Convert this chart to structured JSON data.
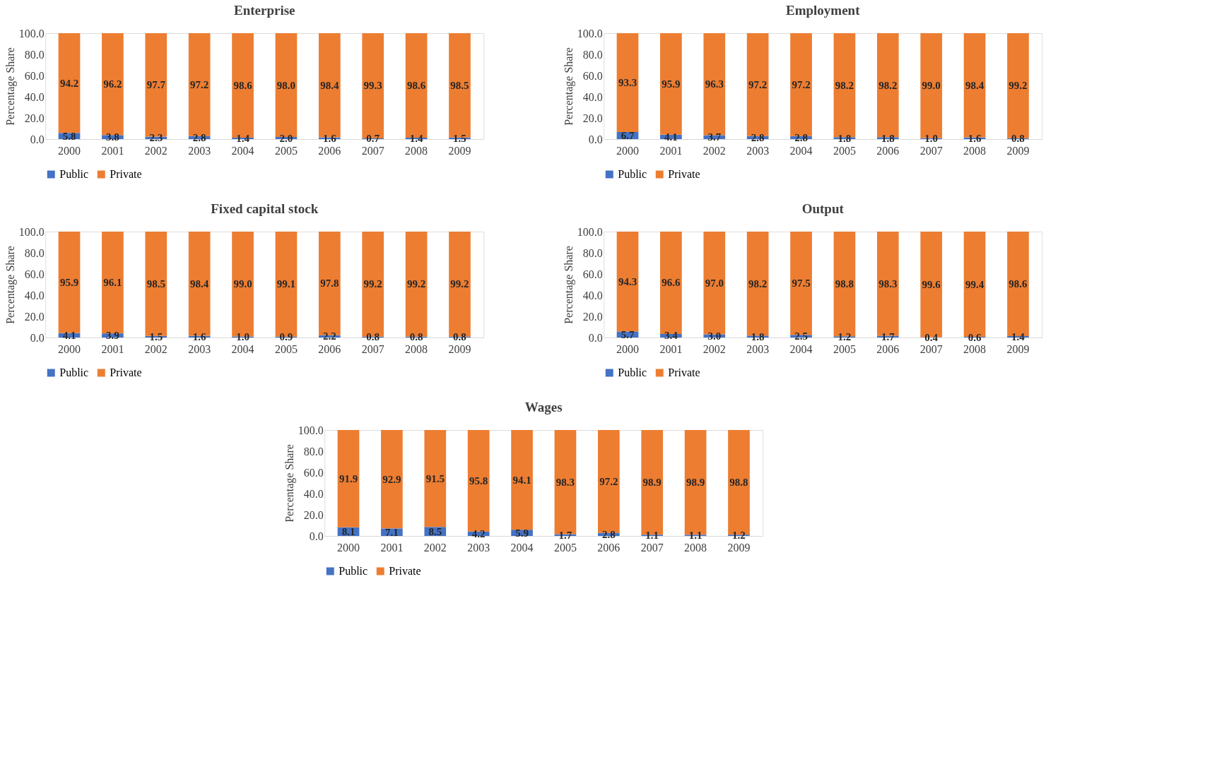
{
  "chart_data": [
    {
      "type": "bar",
      "title": "Enterprise",
      "ylabel": "Percentage Share",
      "stacked": true,
      "data_labels": true,
      "legend": "bottom",
      "grid": false,
      "categories": [
        "2000",
        "2001",
        "2002",
        "2003",
        "2004",
        "2005",
        "2006",
        "2007",
        "2008",
        "2009"
      ],
      "ylim": [
        0,
        100
      ],
      "yticks": [
        {
          "value": 0,
          "label": "0.0"
        },
        {
          "value": 20,
          "label": "20.0"
        },
        {
          "value": 40,
          "label": "40.0"
        },
        {
          "value": 60,
          "label": "60.0"
        },
        {
          "value": 80,
          "label": "80.0"
        },
        {
          "value": 100,
          "label": "100.0"
        }
      ],
      "series": [
        {
          "name": "Public",
          "color": "#4472c4",
          "values": [
            5.8,
            3.8,
            2.3,
            2.8,
            1.4,
            2.0,
            1.6,
            0.7,
            1.4,
            1.5
          ],
          "value_labels": [
            "5.8",
            "3.8",
            "2.3",
            "2.8",
            "1.4",
            "2.0",
            "1.6",
            "0.7",
            "1.4",
            "1.5"
          ]
        },
        {
          "name": "Private",
          "color": "#ed7d31",
          "values": [
            94.2,
            96.2,
            97.7,
            97.2,
            98.6,
            98.0,
            98.4,
            99.3,
            98.6,
            98.5
          ],
          "value_labels": [
            "94.2",
            "96.2",
            "97.7",
            "97.2",
            "98.6",
            "98.0",
            "98.4",
            "99.3",
            "98.6",
            "98.5"
          ]
        }
      ]
    },
    {
      "type": "bar",
      "title": "Employment",
      "ylabel": "Percentage Share",
      "stacked": true,
      "data_labels": true,
      "legend": "bottom",
      "grid": false,
      "categories": [
        "2000",
        "2001",
        "2002",
        "2003",
        "2004",
        "2005",
        "2006",
        "2007",
        "2008",
        "2009"
      ],
      "ylim": [
        0,
        100
      ],
      "yticks": [
        {
          "value": 0,
          "label": "0.0"
        },
        {
          "value": 20,
          "label": "20.0"
        },
        {
          "value": 40,
          "label": "40.0"
        },
        {
          "value": 60,
          "label": "60.0"
        },
        {
          "value": 80,
          "label": "80.0"
        },
        {
          "value": 100,
          "label": "100.0"
        }
      ],
      "series": [
        {
          "name": "Public",
          "color": "#4472c4",
          "values": [
            6.7,
            4.1,
            3.7,
            2.8,
            2.8,
            1.8,
            1.8,
            1.0,
            1.6,
            0.8
          ],
          "value_labels": [
            "6.7",
            "4.1",
            "3.7",
            "2.8",
            "2.8",
            "1.8",
            "1.8",
            "1.0",
            "1.6",
            "0.8"
          ]
        },
        {
          "name": "Private",
          "color": "#ed7d31",
          "values": [
            93.3,
            95.9,
            96.3,
            97.2,
            97.2,
            98.2,
            98.2,
            99.0,
            98.4,
            99.2
          ],
          "value_labels": [
            "93.3",
            "95.9",
            "96.3",
            "97.2",
            "97.2",
            "98.2",
            "98.2",
            "99.0",
            "98.4",
            "99.2"
          ]
        }
      ]
    },
    {
      "type": "bar",
      "title": "Fixed capital stock",
      "ylabel": "Percentage Share",
      "stacked": true,
      "data_labels": true,
      "legend": "bottom",
      "grid": false,
      "categories": [
        "2000",
        "2001",
        "2002",
        "2003",
        "2004",
        "2005",
        "2006",
        "2007",
        "2008",
        "2009"
      ],
      "ylim": [
        0,
        100
      ],
      "yticks": [
        {
          "value": 0,
          "label": "0.0"
        },
        {
          "value": 20,
          "label": "20.0"
        },
        {
          "value": 40,
          "label": "40.0"
        },
        {
          "value": 60,
          "label": "60.0"
        },
        {
          "value": 80,
          "label": "80.0"
        },
        {
          "value": 100,
          "label": "100.0"
        }
      ],
      "series": [
        {
          "name": "Public",
          "color": "#4472c4",
          "values": [
            4.1,
            3.9,
            1.5,
            1.6,
            1.0,
            0.9,
            2.2,
            0.8,
            0.8,
            0.8
          ],
          "value_labels": [
            "4.1",
            "3.9",
            "1.5",
            "1.6",
            "1.0",
            "0.9",
            "2.2",
            "0.8",
            "0.8",
            "0.8"
          ]
        },
        {
          "name": "Private",
          "color": "#ed7d31",
          "values": [
            95.9,
            96.1,
            98.5,
            98.4,
            99.0,
            99.1,
            97.8,
            99.2,
            99.2,
            99.2
          ],
          "value_labels": [
            "95.9",
            "96.1",
            "98.5",
            "98.4",
            "99.0",
            "99.1",
            "97.8",
            "99.2",
            "99.2",
            "99.2"
          ]
        }
      ]
    },
    {
      "type": "bar",
      "title": "Output",
      "ylabel": "Percentage Share",
      "stacked": true,
      "data_labels": true,
      "legend": "bottom",
      "grid": false,
      "categories": [
        "2000",
        "2001",
        "2002",
        "2003",
        "2004",
        "2005",
        "2006",
        "2007",
        "2008",
        "2009"
      ],
      "ylim": [
        0,
        100
      ],
      "yticks": [
        {
          "value": 0,
          "label": "0.0"
        },
        {
          "value": 20,
          "label": "20.0"
        },
        {
          "value": 40,
          "label": "40.0"
        },
        {
          "value": 60,
          "label": "60.0"
        },
        {
          "value": 80,
          "label": "80.0"
        },
        {
          "value": 100,
          "label": "100.0"
        }
      ],
      "series": [
        {
          "name": "Public",
          "color": "#4472c4",
          "values": [
            5.7,
            3.4,
            3.0,
            1.8,
            2.5,
            1.2,
            1.7,
            0.4,
            0.6,
            1.4
          ],
          "value_labels": [
            "5.7",
            "3.4",
            "3.0",
            "1.8",
            "2.5",
            "1.2",
            "1.7",
            "0.4",
            "0.6",
            "1.4"
          ]
        },
        {
          "name": "Private",
          "color": "#ed7d31",
          "values": [
            94.3,
            96.6,
            97.0,
            98.2,
            97.5,
            98.8,
            98.3,
            99.6,
            99.4,
            98.6
          ],
          "value_labels": [
            "94.3",
            "96.6",
            "97.0",
            "98.2",
            "97.5",
            "98.8",
            "98.3",
            "99.6",
            "99.4",
            "98.6"
          ]
        }
      ]
    },
    {
      "type": "bar",
      "title": "Wages",
      "ylabel": "Percentage Share",
      "stacked": true,
      "data_labels": true,
      "legend": "bottom",
      "grid": false,
      "categories": [
        "2000",
        "2001",
        "2002",
        "2003",
        "2004",
        "2005",
        "2006",
        "2007",
        "2008",
        "2009"
      ],
      "ylim": [
        0,
        100
      ],
      "yticks": [
        {
          "value": 0,
          "label": "0.0"
        },
        {
          "value": 20,
          "label": "20.0"
        },
        {
          "value": 40,
          "label": "40.0"
        },
        {
          "value": 60,
          "label": "60.0"
        },
        {
          "value": 80,
          "label": "80.0"
        },
        {
          "value": 100,
          "label": "100.0"
        }
      ],
      "series": [
        {
          "name": "Public",
          "color": "#4472c4",
          "values": [
            8.1,
            7.1,
            8.5,
            4.2,
            5.9,
            1.7,
            2.8,
            1.1,
            1.1,
            1.2
          ],
          "value_labels": [
            "8.1",
            "7.1",
            "8.5",
            "4.2",
            "5.9",
            "1.7",
            "2.8",
            "1.1",
            "1.1",
            "1.2"
          ]
        },
        {
          "name": "Private",
          "color": "#ed7d31",
          "values": [
            91.9,
            92.9,
            91.5,
            95.8,
            94.1,
            98.3,
            97.2,
            98.9,
            98.9,
            98.8
          ],
          "value_labels": [
            "91.9",
            "92.9",
            "91.5",
            "95.8",
            "94.1",
            "98.3",
            "97.2",
            "98.9",
            "98.9",
            "98.8"
          ]
        }
      ]
    }
  ]
}
